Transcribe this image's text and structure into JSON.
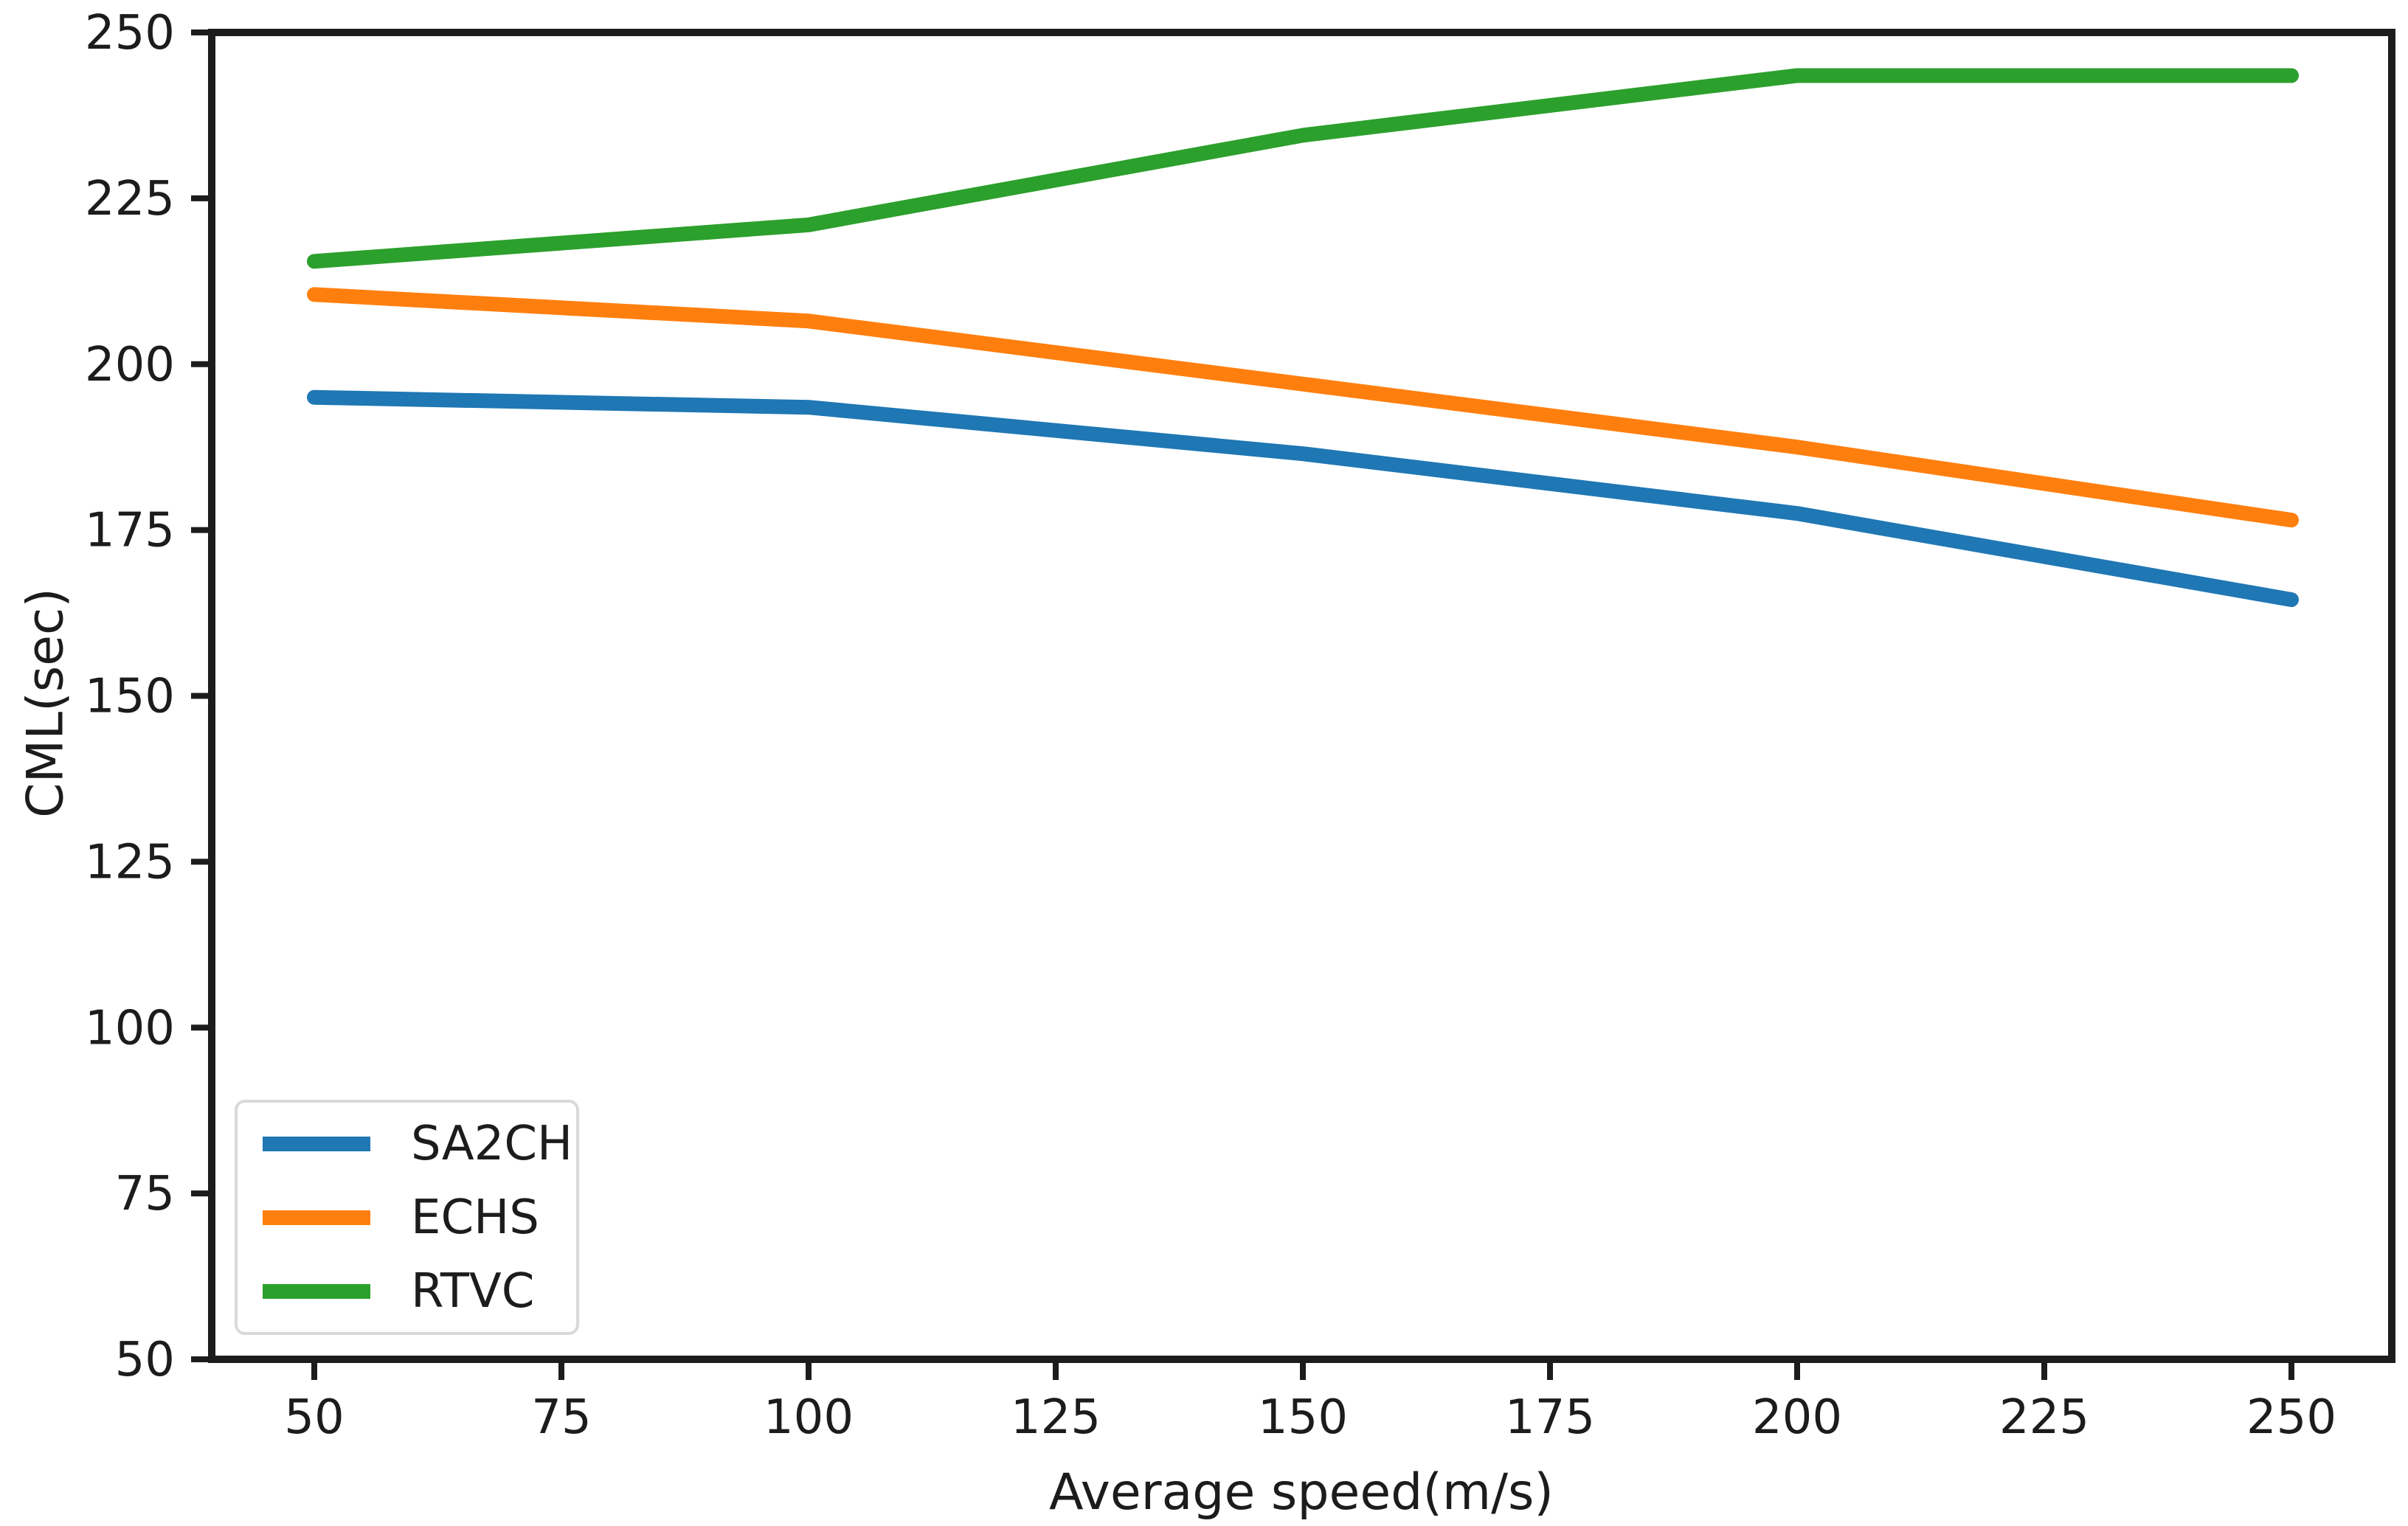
{
  "figure": {
    "background_color": "#ffffff",
    "axis_color": "#1c1c1c",
    "legend_border_color": "#d9d9d9"
  },
  "chart_data": {
    "type": "line",
    "title": "",
    "xlabel": "Average speed(m/s)",
    "ylabel": "CML(sec)",
    "x": [
      50,
      100,
      150,
      200,
      250
    ],
    "series": [
      {
        "name": "SA2CH",
        "color": "#1f77b4",
        "values": [
          195,
          193.5,
          186.5,
          177.5,
          164.5
        ]
      },
      {
        "name": "ECHS",
        "color": "#ff7f0e",
        "values": [
          210.5,
          206.5,
          197,
          187.5,
          176.5
        ]
      },
      {
        "name": "RTVC",
        "color": "#2ca02c",
        "values": [
          215.5,
          221,
          234.5,
          243.5,
          243.5
        ]
      }
    ],
    "xlim": [
      50,
      250
    ],
    "ylim": [
      50,
      250
    ],
    "x_ticks": [
      50,
      75,
      100,
      125,
      150,
      175,
      200,
      225,
      250
    ],
    "y_ticks": [
      50,
      75,
      100,
      125,
      150,
      175,
      200,
      225,
      250
    ],
    "grid": false,
    "legend_position": "lower left"
  }
}
